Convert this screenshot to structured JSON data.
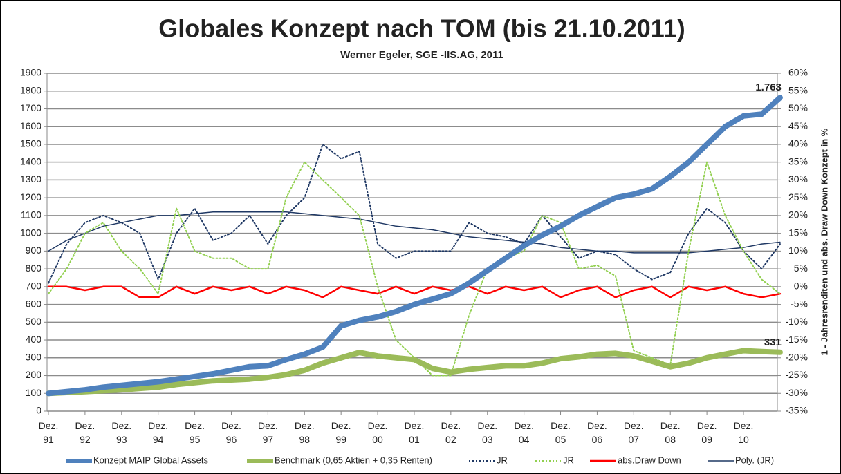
{
  "chart_data": {
    "type": "line",
    "title": "Globales Konzept nach TOM (bis 21.10.2011)",
    "subtitle": "Werner Egeler, SGE -IIS.AG, 2011",
    "y2_label": "1 - Jahresrenditen und abs. Draw Down Konzept in %",
    "categories": [
      "Dez. 91",
      null,
      "Dez. 92",
      null,
      "Dez. 93",
      null,
      "Dez. 94",
      null,
      "Dez. 95",
      null,
      "Dez. 96",
      null,
      "Dez. 97",
      null,
      "Dez. 98",
      null,
      "Dez. 99",
      null,
      "Dez. 00",
      null,
      "Dez. 01",
      null,
      "Dez. 02",
      null,
      "Dez. 03",
      null,
      "Dez. 04",
      null,
      "Dez. 05",
      null,
      "Dez. 06",
      null,
      "Dez. 07",
      null,
      "Dez. 08",
      null,
      "Dez. 09",
      null,
      "Dez. 10",
      null,
      null
    ],
    "series": [
      {
        "name": "Konzept MAIP Global Assets",
        "color": "#4f81bd",
        "width": 8,
        "dash": "solid",
        "values": [
          100,
          110,
          120,
          135,
          145,
          155,
          165,
          180,
          195,
          210,
          230,
          250,
          255,
          290,
          320,
          360,
          480,
          510,
          530,
          560,
          600,
          630,
          660,
          720,
          790,
          860,
          930,
          990,
          1040,
          1100,
          1150,
          1200,
          1220,
          1250,
          1320,
          1400,
          1500,
          1600,
          1660,
          1670,
          1763
        ],
        "value_labels": [
          null,
          null,
          null,
          null,
          null,
          null,
          null,
          null,
          null,
          null,
          null,
          null,
          null,
          null,
          null,
          null,
          null,
          null,
          null,
          null,
          null,
          null,
          null,
          null,
          null,
          null,
          null,
          null,
          null,
          null,
          null,
          null,
          null,
          null,
          null,
          null,
          null,
          null,
          null,
          null,
          "1.763"
        ]
      },
      {
        "name": "Benchmark (0,65 Aktien + 0,35 Renten)",
        "color": "#9bbb59",
        "width": 8,
        "dash": "solid",
        "values": [
          100,
          105,
          110,
          115,
          120,
          128,
          135,
          150,
          160,
          170,
          175,
          180,
          190,
          205,
          230,
          270,
          300,
          330,
          310,
          300,
          290,
          240,
          220,
          235,
          245,
          255,
          255,
          270,
          295,
          305,
          320,
          325,
          310,
          280,
          250,
          270,
          300,
          320,
          340,
          335,
          331
        ],
        "value_labels": [
          null,
          null,
          null,
          null,
          null,
          null,
          null,
          null,
          null,
          null,
          null,
          null,
          null,
          null,
          null,
          null,
          null,
          null,
          null,
          null,
          null,
          null,
          null,
          null,
          null,
          null,
          null,
          null,
          null,
          null,
          null,
          null,
          null,
          null,
          null,
          null,
          null,
          null,
          null,
          null,
          "331"
        ]
      },
      {
        "name": "JR",
        "color": "#1f3864",
        "width": 2,
        "dash": "dotted",
        "axis": "y2",
        "values": [
          1,
          12,
          18,
          20,
          18,
          15,
          2,
          15,
          22,
          13,
          15,
          20,
          12,
          20,
          25,
          40,
          36,
          38,
          12,
          8,
          10,
          10,
          10,
          18,
          15,
          14,
          12,
          20,
          14,
          8,
          10,
          9,
          5,
          2,
          4,
          15,
          22,
          18,
          10,
          5,
          12
        ]
      },
      {
        "name": "JR",
        "color": "#92d050",
        "width": 2,
        "dash": "dotted",
        "axis": "y2",
        "values": [
          -2,
          5,
          15,
          18,
          10,
          5,
          -2,
          22,
          10,
          8,
          8,
          5,
          5,
          25,
          35,
          30,
          25,
          20,
          0,
          -15,
          -20,
          -25,
          -25,
          -8,
          5,
          8,
          10,
          20,
          18,
          5,
          6,
          3,
          -18,
          -20,
          -22,
          10,
          35,
          20,
          10,
          2,
          -2
        ]
      },
      {
        "name": "abs.Draw Down",
        "color": "#ff0000",
        "width": 2.5,
        "dash": "solid",
        "axis": "y2",
        "values": [
          0,
          0,
          -1,
          0,
          0,
          -3,
          -3,
          0,
          -2,
          0,
          -1,
          0,
          -2,
          0,
          -1,
          -3,
          0,
          -1,
          -2,
          0,
          -2,
          0,
          -1,
          0,
          -2,
          0,
          -1,
          0,
          -3,
          -1,
          0,
          -3,
          -1,
          0,
          -3,
          0,
          -1,
          0,
          -2,
          -3,
          -2
        ]
      },
      {
        "name": "Poly. (JR)",
        "color": "#1f3864",
        "width": 1.5,
        "dash": "solid",
        "axis": "y2",
        "values": [
          10,
          13,
          15,
          17,
          18,
          19,
          20,
          20,
          20.5,
          21,
          21,
          21,
          21,
          21,
          20.5,
          20,
          19.5,
          19,
          18,
          17,
          16.5,
          16,
          15,
          14,
          13.5,
          13,
          12.5,
          12,
          11,
          10.5,
          10,
          10,
          9.5,
          9.5,
          9.5,
          9.5,
          10,
          10.5,
          11,
          12,
          12.5
        ]
      }
    ],
    "ylim": [
      0,
      1900
    ],
    "yticks": [
      0,
      100,
      200,
      300,
      400,
      500,
      600,
      700,
      800,
      900,
      1000,
      1100,
      1200,
      1300,
      1400,
      1500,
      1600,
      1700,
      1800,
      1900
    ],
    "y2lim": [
      -35,
      60
    ],
    "y2ticks": [
      {
        "value": -35,
        "label": "-35%"
      },
      {
        "value": -30,
        "label": "-30%"
      },
      {
        "value": -25,
        "label": "-25%"
      },
      {
        "value": -20,
        "label": "-20%"
      },
      {
        "value": -15,
        "label": "-15%"
      },
      {
        "value": -10,
        "label": "-10%"
      },
      {
        "value": -5,
        "label": "-5%"
      },
      {
        "value": 0,
        "label": "0%"
      },
      {
        "value": 5,
        "label": "5%"
      },
      {
        "value": 10,
        "label": "10%"
      },
      {
        "value": 15,
        "label": "15%"
      },
      {
        "value": 20,
        "label": "20%"
      },
      {
        "value": 25,
        "label": "25%"
      },
      {
        "value": 30,
        "label": "30%"
      },
      {
        "value": 35,
        "label": "35%"
      },
      {
        "value": 40,
        "label": "40%"
      },
      {
        "value": 45,
        "label": "45%"
      },
      {
        "value": 50,
        "label": "50%"
      },
      {
        "value": 55,
        "label": "55%"
      },
      {
        "value": 60,
        "label": "60%"
      }
    ],
    "grid": true,
    "legend": "bottom"
  }
}
